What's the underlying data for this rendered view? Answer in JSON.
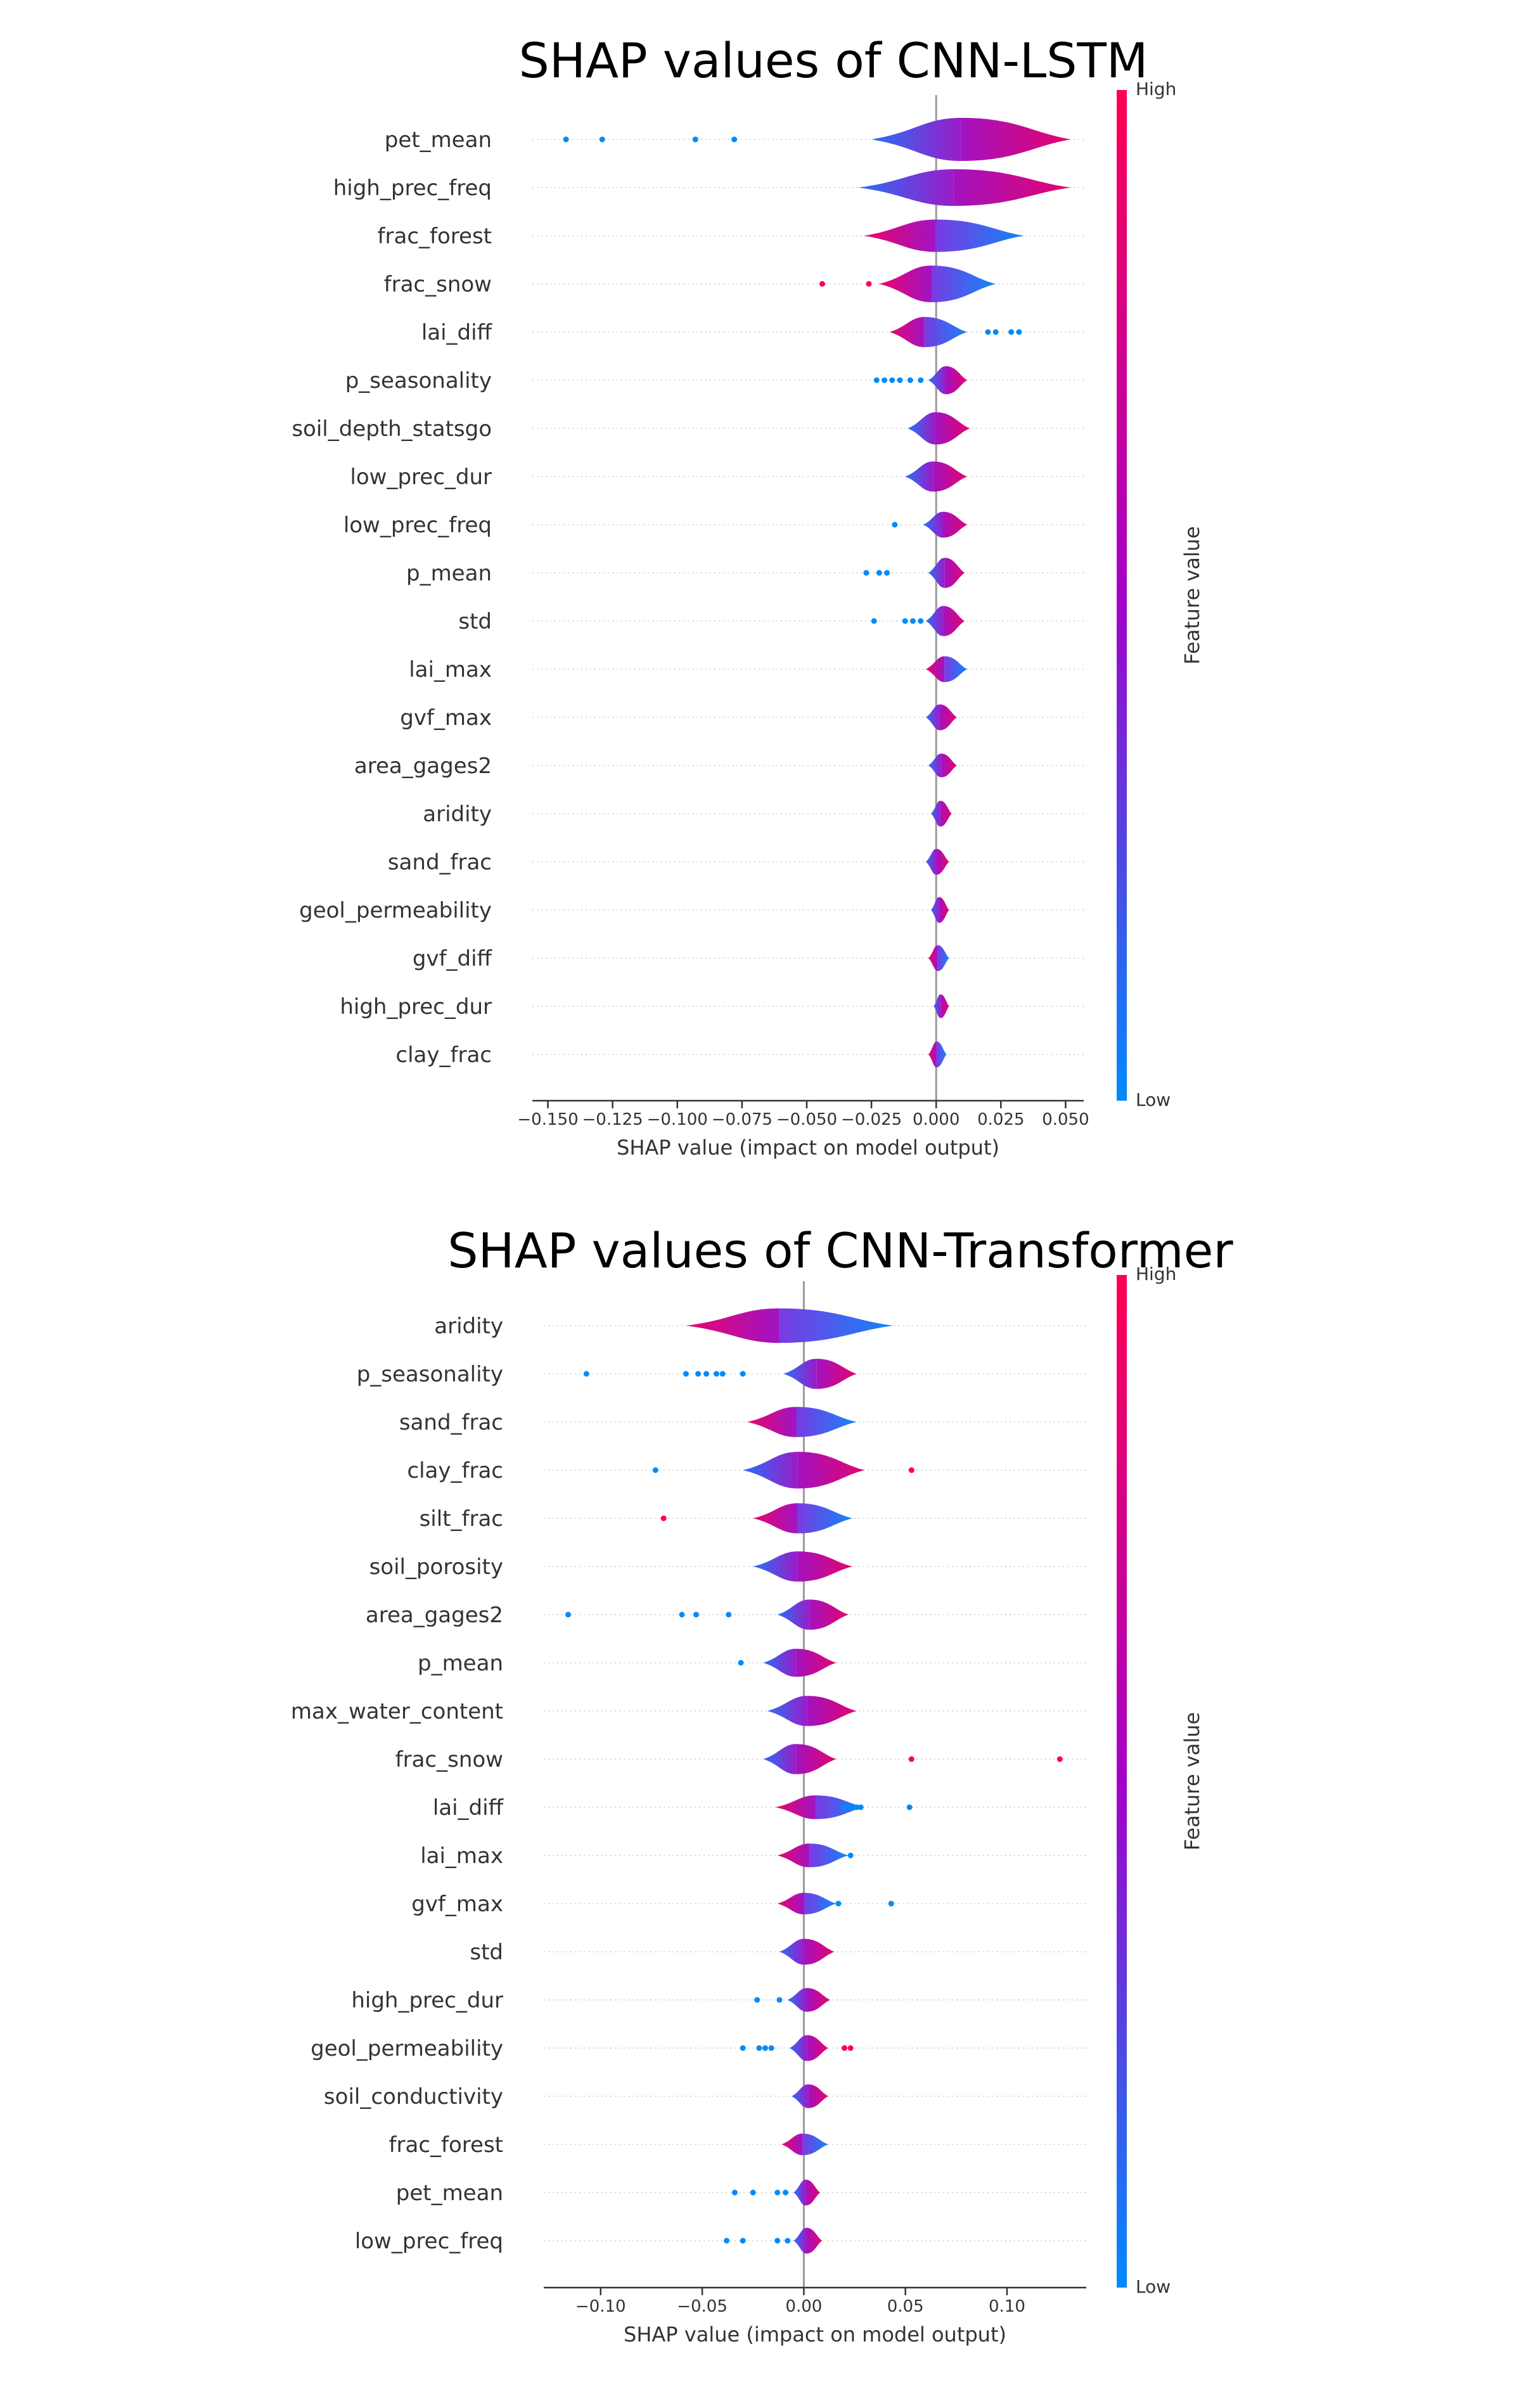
{
  "colorbar": {
    "high_label": "High",
    "low_label": "Low",
    "title": "Feature value",
    "color_high": "#ff0052",
    "color_mid": "#a400c8",
    "color_low": "#008bfb"
  },
  "chart_data": [
    {
      "type": "violin",
      "title": "SHAP values of CNN-LSTM",
      "xlabel": "SHAP value (impact on model output)",
      "ylabel": "",
      "xlim": [
        -0.156,
        0.057
      ],
      "xticks": [
        -0.15,
        -0.125,
        -0.1,
        -0.075,
        -0.05,
        -0.025,
        0.0,
        0.025,
        0.05
      ],
      "xtick_labels": [
        "−0.150",
        "−0.125",
        "−0.100",
        "−0.075",
        "−0.050",
        "−0.025",
        "0.000",
        "0.025",
        "0.050"
      ],
      "series": [
        {
          "name": "pet_mean",
          "min": -0.025,
          "max": 0.052,
          "width": 1.0,
          "low_side": "left",
          "outliers": [
            -0.143,
            -0.129,
            -0.093,
            -0.078
          ]
        },
        {
          "name": "high_prec_freq",
          "min": -0.03,
          "max": 0.052,
          "width": 0.85,
          "low_side": "left",
          "outliers": []
        },
        {
          "name": "frac_forest",
          "min": -0.028,
          "max": 0.034,
          "width": 0.75,
          "low_side": "right",
          "outliers": []
        },
        {
          "name": "frac_snow",
          "min": -0.022,
          "max": 0.023,
          "width": 0.85,
          "low_side": "right",
          "outliers": [
            -0.044,
            -0.026
          ]
        },
        {
          "name": "lai_diff",
          "min": -0.018,
          "max": 0.012,
          "width": 0.7,
          "low_side": "right",
          "outliers": [
            0.02,
            0.023,
            0.029,
            0.032
          ]
        },
        {
          "name": "p_seasonality",
          "min": -0.003,
          "max": 0.012,
          "width": 0.65,
          "low_side": "left",
          "outliers": [
            -0.023,
            -0.02,
            -0.017,
            -0.014,
            -0.01,
            -0.006
          ]
        },
        {
          "name": "soil_depth_statsgo",
          "min": -0.011,
          "max": 0.013,
          "width": 0.75,
          "low_side": "left",
          "outliers": []
        },
        {
          "name": "low_prec_dur",
          "min": -0.012,
          "max": 0.012,
          "width": 0.7,
          "low_side": "left",
          "outliers": []
        },
        {
          "name": "low_prec_freq",
          "min": -0.005,
          "max": 0.012,
          "width": 0.6,
          "low_side": "left",
          "outliers": [
            -0.016
          ]
        },
        {
          "name": "p_mean",
          "min": -0.003,
          "max": 0.011,
          "width": 0.7,
          "low_side": "left",
          "outliers": [
            -0.027,
            -0.022,
            -0.019
          ]
        },
        {
          "name": "std",
          "min": -0.004,
          "max": 0.011,
          "width": 0.7,
          "low_side": "left",
          "outliers": [
            -0.024,
            -0.012,
            -0.009,
            -0.006
          ]
        },
        {
          "name": "lai_max",
          "min": -0.004,
          "max": 0.012,
          "width": 0.6,
          "low_side": "right",
          "outliers": []
        },
        {
          "name": "gvf_max",
          "min": -0.004,
          "max": 0.008,
          "width": 0.6,
          "low_side": "left",
          "outliers": []
        },
        {
          "name": "area_gages2",
          "min": -0.003,
          "max": 0.008,
          "width": 0.55,
          "low_side": "left",
          "outliers": []
        },
        {
          "name": "aridity",
          "min": -0.002,
          "max": 0.006,
          "width": 0.6,
          "low_side": "left",
          "outliers": []
        },
        {
          "name": "sand_frac",
          "min": -0.004,
          "max": 0.005,
          "width": 0.6,
          "low_side": "left",
          "outliers": []
        },
        {
          "name": "geol_permeability",
          "min": -0.002,
          "max": 0.005,
          "width": 0.6,
          "low_side": "left",
          "outliers": []
        },
        {
          "name": "gvf_diff",
          "min": -0.003,
          "max": 0.005,
          "width": 0.6,
          "low_side": "right",
          "outliers": []
        },
        {
          "name": "high_prec_dur",
          "min": -0.001,
          "max": 0.005,
          "width": 0.55,
          "low_side": "left",
          "outliers": []
        },
        {
          "name": "clay_frac",
          "min": -0.003,
          "max": 0.004,
          "width": 0.6,
          "low_side": "right",
          "outliers": []
        }
      ]
    },
    {
      "type": "violin",
      "title": "SHAP values of CNN-Transformer",
      "xlabel": "SHAP value (impact on model output)",
      "ylabel": "",
      "xlim": [
        -0.128,
        0.139
      ],
      "xticks": [
        -0.1,
        -0.05,
        0.0,
        0.05,
        0.1
      ],
      "xtick_labels": [
        "−0.10",
        "−0.05",
        "0.00",
        "0.05",
        "0.10"
      ],
      "series": [
        {
          "name": "aridity",
          "min": -0.058,
          "max": 0.044,
          "width": 0.8,
          "low_side": "right",
          "outliers": []
        },
        {
          "name": "p_seasonality",
          "min": -0.01,
          "max": 0.026,
          "width": 0.7,
          "low_side": "left",
          "outliers": [
            -0.107,
            -0.058,
            -0.052,
            -0.048,
            -0.043,
            -0.04,
            -0.03
          ]
        },
        {
          "name": "sand_frac",
          "min": -0.028,
          "max": 0.026,
          "width": 0.7,
          "low_side": "right",
          "outliers": []
        },
        {
          "name": "clay_frac",
          "min": -0.03,
          "max": 0.03,
          "width": 0.85,
          "low_side": "left",
          "outliers": [
            -0.073,
            0.053
          ]
        },
        {
          "name": "silt_frac",
          "min": -0.025,
          "max": 0.024,
          "width": 0.7,
          "low_side": "right",
          "outliers": [
            -0.069
          ]
        },
        {
          "name": "soil_porosity",
          "min": -0.025,
          "max": 0.024,
          "width": 0.7,
          "low_side": "left",
          "outliers": []
        },
        {
          "name": "area_gages2",
          "min": -0.013,
          "max": 0.022,
          "width": 0.7,
          "low_side": "left",
          "outliers": [
            -0.116,
            -0.06,
            -0.053,
            -0.037
          ]
        },
        {
          "name": "p_mean",
          "min": -0.02,
          "max": 0.016,
          "width": 0.65,
          "low_side": "left",
          "outliers": [
            -0.031
          ]
        },
        {
          "name": "max_water_content",
          "min": -0.018,
          "max": 0.026,
          "width": 0.7,
          "low_side": "left",
          "outliers": []
        },
        {
          "name": "frac_snow",
          "min": -0.02,
          "max": 0.016,
          "width": 0.7,
          "low_side": "left",
          "outliers": [
            0.053,
            0.126
          ]
        },
        {
          "name": "lai_diff",
          "min": -0.014,
          "max": 0.03,
          "width": 0.55,
          "low_side": "right",
          "outliers": [
            0.02,
            0.023,
            0.026,
            0.028,
            0.052
          ]
        },
        {
          "name": "lai_max",
          "min": -0.013,
          "max": 0.022,
          "width": 0.55,
          "low_side": "right",
          "outliers": [
            0.023
          ]
        },
        {
          "name": "gvf_max",
          "min": -0.013,
          "max": 0.016,
          "width": 0.5,
          "low_side": "right",
          "outliers": [
            0.017,
            0.043
          ]
        },
        {
          "name": "std",
          "min": -0.012,
          "max": 0.015,
          "width": 0.6,
          "low_side": "left",
          "outliers": []
        },
        {
          "name": "high_prec_dur",
          "min": -0.008,
          "max": 0.013,
          "width": 0.55,
          "low_side": "left",
          "outliers": [
            -0.023,
            -0.012
          ]
        },
        {
          "name": "geol_permeability",
          "min": -0.007,
          "max": 0.012,
          "width": 0.6,
          "low_side": "left",
          "outliers": [
            -0.03,
            -0.022,
            -0.019,
            -0.016,
            0.02,
            0.023
          ]
        },
        {
          "name": "soil_conductivity",
          "min": -0.006,
          "max": 0.012,
          "width": 0.55,
          "low_side": "left",
          "outliers": []
        },
        {
          "name": "frac_forest",
          "min": -0.011,
          "max": 0.012,
          "width": 0.5,
          "low_side": "right",
          "outliers": []
        },
        {
          "name": "pet_mean",
          "min": -0.005,
          "max": 0.008,
          "width": 0.6,
          "low_side": "left",
          "outliers": [
            -0.034,
            -0.025,
            -0.013,
            -0.009
          ]
        },
        {
          "name": "low_prec_freq",
          "min": -0.005,
          "max": 0.009,
          "width": 0.6,
          "low_side": "left",
          "outliers": [
            -0.038,
            -0.03,
            -0.013,
            -0.008
          ]
        }
      ]
    }
  ]
}
